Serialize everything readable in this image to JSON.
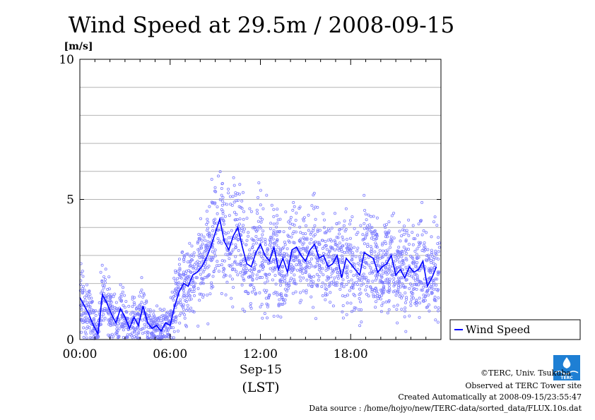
{
  "chart_data": {
    "type": "scatter",
    "title": "Wind Speed at 29.5m / 2008-09-15",
    "ylabel": "[m/s]",
    "ylim": [
      0,
      10
    ],
    "y_ticks": [
      "0",
      "5",
      "10"
    ],
    "xlim_hours": [
      0,
      24
    ],
    "x_ticks": [
      "00:00",
      "06:00",
      "12:00",
      "18:00"
    ],
    "xlabel_date": "Sep-15",
    "xlabel_tz": "(LST)",
    "grid": true,
    "legend_position": "right-bottom",
    "series": [
      {
        "name": "Wind Speed",
        "color": "#0000ff",
        "point_color": "#7f7fff",
        "x_hours": [
          0.0,
          0.3,
          0.6,
          0.9,
          1.2,
          1.5,
          1.8,
          2.1,
          2.4,
          2.7,
          3.0,
          3.3,
          3.6,
          3.9,
          4.2,
          4.5,
          4.8,
          5.1,
          5.4,
          5.7,
          6.0,
          6.3,
          6.6,
          6.9,
          7.2,
          7.5,
          7.8,
          8.1,
          8.4,
          8.7,
          9.0,
          9.3,
          9.6,
          9.9,
          10.2,
          10.5,
          10.8,
          11.1,
          11.4,
          11.7,
          12.0,
          12.3,
          12.6,
          12.9,
          13.2,
          13.5,
          13.8,
          14.1,
          14.4,
          14.7,
          15.0,
          15.3,
          15.6,
          15.9,
          16.2,
          16.5,
          16.8,
          17.1,
          17.4,
          17.7,
          18.0,
          18.3,
          18.6,
          18.9,
          19.2,
          19.5,
          19.8,
          20.1,
          20.4,
          20.7,
          21.0,
          21.3,
          21.6,
          21.9,
          22.2,
          22.5,
          22.8,
          23.1,
          23.4,
          23.7
        ],
        "values": [
          1.5,
          1.2,
          0.9,
          0.5,
          0.2,
          1.6,
          1.3,
          0.9,
          0.6,
          1.1,
          0.8,
          0.4,
          0.8,
          0.5,
          1.2,
          0.6,
          0.4,
          0.5,
          0.3,
          0.6,
          0.5,
          1.2,
          1.7,
          2.0,
          1.9,
          2.3,
          2.4,
          2.6,
          2.9,
          3.3,
          3.8,
          4.3,
          3.5,
          3.2,
          3.7,
          4.0,
          3.3,
          2.7,
          2.6,
          3.1,
          3.4,
          3.0,
          2.8,
          3.3,
          2.5,
          2.9,
          2.4,
          3.2,
          3.3,
          3.0,
          2.8,
          3.2,
          3.4,
          2.9,
          3.0,
          2.6,
          2.7,
          3.0,
          2.2,
          2.9,
          2.7,
          2.5,
          2.3,
          3.1,
          3.0,
          2.9,
          2.4,
          2.6,
          2.7,
          3.0,
          2.3,
          2.5,
          2.2,
          2.6,
          2.4,
          2.5,
          2.8,
          1.9,
          2.2,
          2.6
        ]
      }
    ]
  },
  "credits": {
    "copyright": "©TERC, Univ. Tsukuba",
    "observed": "Observed at TERC Tower site",
    "created": "Created Automatically at 2008-09-15/23:55:47",
    "source": "Data source : /home/hojyo/new/TERC-data/sorted_data/FLUX.10s.dat"
  },
  "logo": {
    "text": "TERC",
    "color": "#1e7fd4"
  }
}
